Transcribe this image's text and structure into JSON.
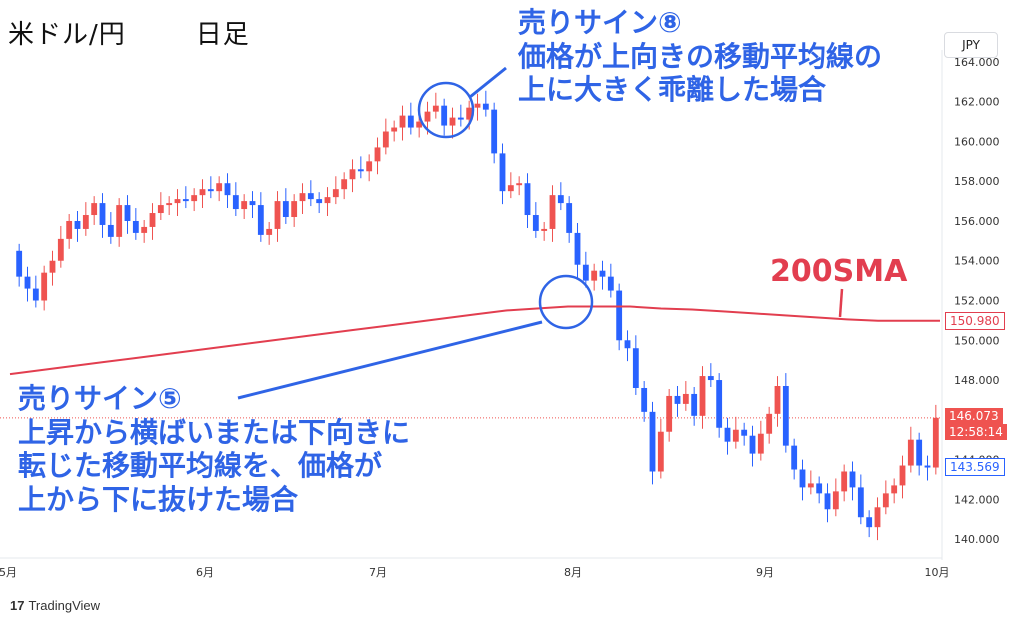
{
  "header": {
    "pair": "米ドル/円",
    "timeframe": "日足"
  },
  "currency_button": "JPY",
  "watermark": "TradingView",
  "annotations": {
    "sign8": [
      "売りサイン⑧",
      "価格が上向きの移動平均線の",
      "上に大きく乖離した場合"
    ],
    "sign5": [
      "売りサイン⑤",
      "上昇から横ばいまたは下向きに",
      "転じた移動平均線を、価格が",
      "上から下に抜けた場合"
    ],
    "sma_label": "200SMA"
  },
  "price_tags": {
    "sma_value": "150.980",
    "last_price": "146.073",
    "countdown": "12:58:14",
    "prev_value": "143.569"
  },
  "colors": {
    "up": "#ef5350",
    "down": "#2962ff",
    "sma": "#e23e4f",
    "annotation": "#2f64e6"
  },
  "chart_data": {
    "type": "candlestick",
    "y_ticks": [
      "140.000",
      "142.000",
      "144.000",
      "146.000",
      "148.000",
      "150.000",
      "152.000",
      "154.000",
      "156.000",
      "158.000",
      "160.000",
      "162.000",
      "164.000"
    ],
    "ylim": [
      139.2,
      164.6
    ],
    "x_ticks": [
      "5月",
      "6月",
      "7月",
      "8月",
      "9月",
      "10月"
    ],
    "series": [
      {
        "name": "200SMA",
        "values": [
          148.3,
          148.5,
          148.7,
          148.9,
          149.1,
          149.3,
          149.5,
          149.7,
          149.9,
          150.1,
          150.3,
          150.5,
          150.7,
          150.9,
          151.1,
          151.3,
          151.5,
          151.6,
          151.7,
          151.7,
          151.7,
          151.6,
          151.55,
          151.45,
          151.35,
          151.25,
          151.15,
          151.05,
          150.98,
          150.98,
          150.98
        ]
      },
      {
        "name": "USDJPY",
        "close": [
          153.2,
          152.6,
          152.0,
          153.4,
          154.0,
          155.1,
          156.0,
          155.6,
          156.3,
          156.9,
          155.8,
          155.2,
          156.8,
          156.0,
          155.4,
          155.7,
          156.4,
          156.8,
          156.9,
          157.1,
          157.0,
          157.3,
          157.6,
          157.5,
          157.9,
          157.3,
          156.6,
          157.0,
          156.8,
          155.3,
          155.6,
          157.0,
          156.2,
          157.0,
          157.4,
          157.1,
          156.9,
          157.2,
          157.6,
          158.1,
          158.6,
          158.5,
          159.0,
          159.7,
          160.5,
          160.7,
          161.3,
          160.7,
          161.0,
          161.5,
          161.8,
          160.8,
          161.2,
          161.1,
          161.7,
          161.9,
          161.6,
          159.4,
          157.5,
          157.8,
          157.9,
          156.3,
          155.5,
          155.6,
          157.3,
          156.9,
          155.4,
          153.8,
          153.0,
          153.5,
          153.2,
          152.5,
          150.0,
          149.6,
          147.6,
          146.4,
          143.4,
          145.4,
          147.2,
          146.8,
          147.3,
          146.2,
          148.2,
          148.0,
          145.6,
          144.9,
          145.5,
          145.2,
          144.3,
          145.3,
          146.3,
          147.7,
          144.7,
          143.5,
          142.6,
          142.8,
          142.3,
          141.5,
          142.4,
          143.4,
          142.6,
          141.1,
          140.6,
          141.6,
          142.3,
          142.7,
          143.7,
          145.0,
          143.7,
          143.6,
          146.1
        ]
      },
      {
        "name": "open",
        "values": [
          154.5,
          153.2,
          152.6,
          152.0,
          153.4,
          154.0,
          155.1,
          156.0,
          155.6,
          156.3,
          156.9,
          155.8,
          155.2,
          156.8,
          156.0,
          155.4,
          155.7,
          156.4,
          156.8,
          156.9,
          157.1,
          157.0,
          157.3,
          157.6,
          157.5,
          157.9,
          157.3,
          156.6,
          157.0,
          156.8,
          155.3,
          155.6,
          157.0,
          156.2,
          157.0,
          157.4,
          157.1,
          156.9,
          157.2,
          157.6,
          158.1,
          158.6,
          158.5,
          159.0,
          159.7,
          160.5,
          160.7,
          161.3,
          160.7,
          161.0,
          161.5,
          161.8,
          160.8,
          161.2,
          161.1,
          161.7,
          161.9,
          161.6,
          159.4,
          157.5,
          157.8,
          157.9,
          156.3,
          155.5,
          155.6,
          157.3,
          156.9,
          155.4,
          153.8,
          153.0,
          153.5,
          153.2,
          152.5,
          150.0,
          149.6,
          147.6,
          146.4,
          143.4,
          145.4,
          147.2,
          146.8,
          147.3,
          146.2,
          148.2,
          148.0,
          145.6,
          144.9,
          145.5,
          145.2,
          144.3,
          145.3,
          146.3,
          147.7,
          144.7,
          143.5,
          142.6,
          142.8,
          142.3,
          141.5,
          142.4,
          143.4,
          142.6,
          141.1,
          140.6,
          141.6,
          142.3,
          142.7,
          143.7,
          145.0,
          143.7,
          143.6
        ]
      }
    ]
  }
}
